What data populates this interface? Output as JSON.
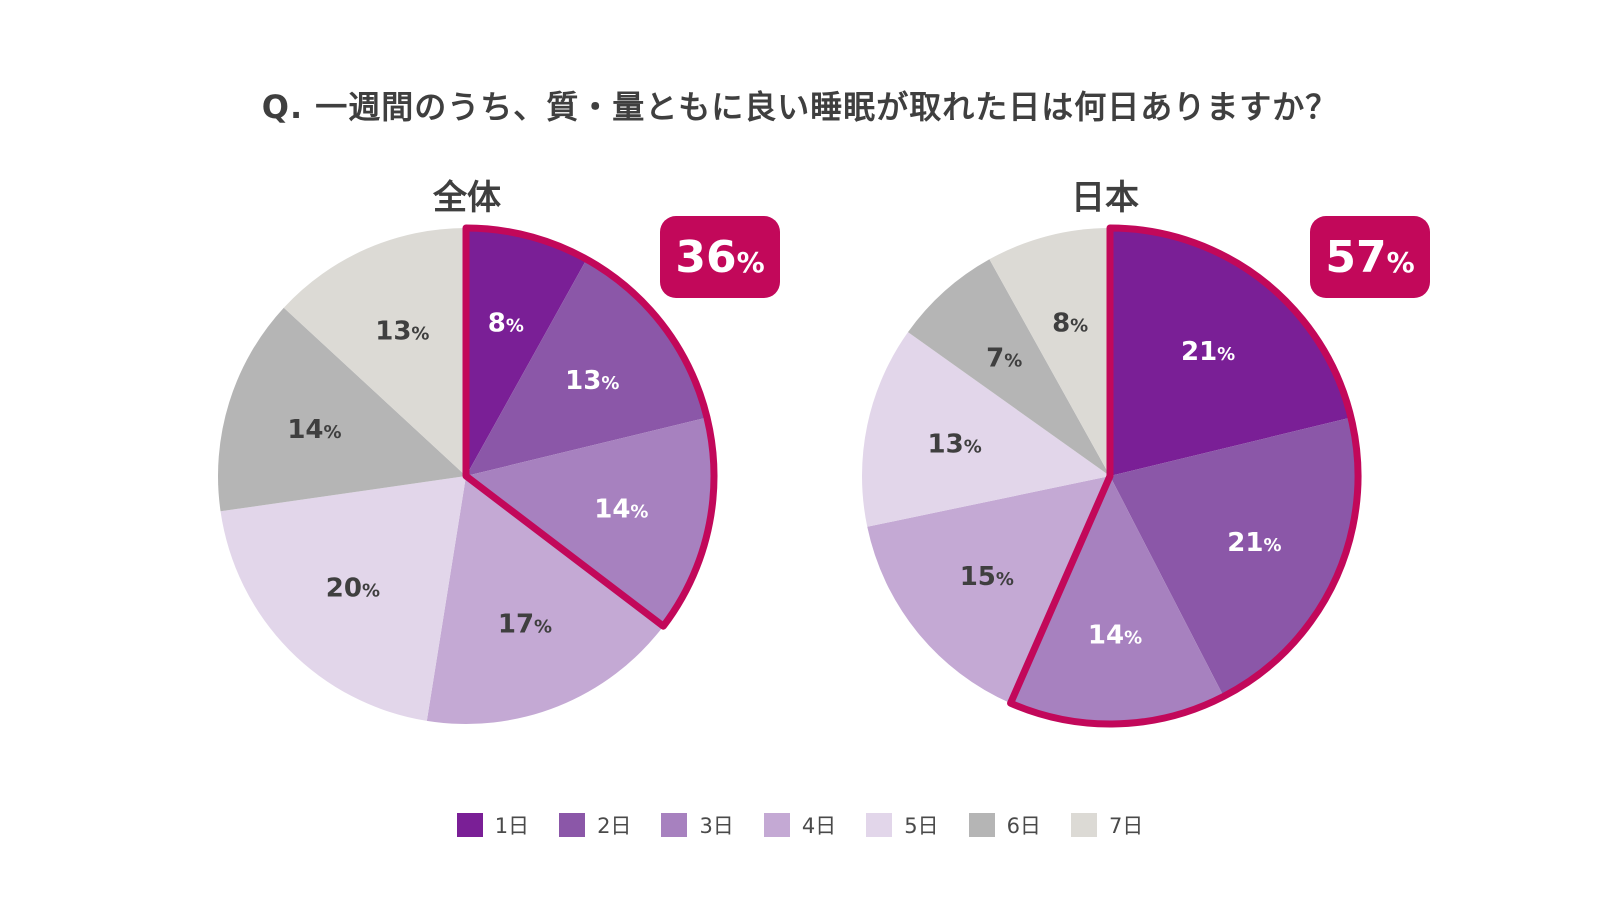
{
  "title": "Q. 一週間のうち、質・量ともに良い睡眠が取れた日は何日ありますか？",
  "chart_data": [
    {
      "type": "pie",
      "title": "全体",
      "categories": [
        "1日",
        "2日",
        "3日",
        "4日",
        "5日",
        "6日",
        "7日"
      ],
      "values": [
        8,
        13,
        14,
        17,
        20,
        14,
        13
      ],
      "labels": [
        "8",
        "13",
        "14",
        "17",
        "20",
        "14",
        "13"
      ],
      "highlight": {
        "slices": [
          0,
          1,
          2
        ],
        "total": "36"
      }
    },
    {
      "type": "pie",
      "title": "日本",
      "categories": [
        "1日",
        "2日",
        "3日",
        "4日",
        "5日",
        "6日",
        "7日"
      ],
      "values": [
        21,
        21,
        14,
        15,
        13,
        7,
        8
      ],
      "labels": [
        "21",
        "21",
        "14",
        "15",
        "13",
        "7",
        "8"
      ],
      "highlight": {
        "slices": [
          0,
          1,
          2
        ],
        "total": "57"
      }
    }
  ],
  "percent_suffix": "%",
  "legend": [
    {
      "label": "1日",
      "color": "#7a1f96"
    },
    {
      "label": "2日",
      "color": "#8b57a8"
    },
    {
      "label": "3日",
      "color": "#a781bf"
    },
    {
      "label": "4日",
      "color": "#c4a9d4"
    },
    {
      "label": "5日",
      "color": "#e2d6ea"
    },
    {
      "label": "6日",
      "color": "#b5b5b5"
    },
    {
      "label": "7日",
      "color": "#dcdad5"
    }
  ],
  "colors": {
    "highlight": "#c2085a",
    "dark_label": "#3f3f3f",
    "light_label": "#ffffff"
  }
}
